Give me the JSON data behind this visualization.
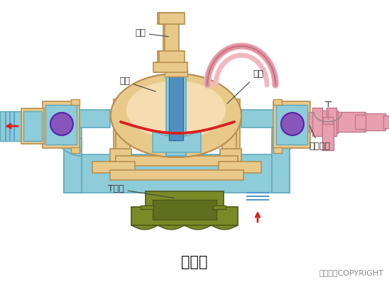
{
  "title": "隔膜泵",
  "copyright": "东方仿真COPYRIGHT",
  "labels": {
    "qi_gang": "气缸",
    "beng_ti": "泵体",
    "ge_mo": "隔膜",
    "dan_xiang": "单向球阀",
    "t_guan": "T型管"
  },
  "colors": {
    "background": "#ffffff",
    "body_fill": "#e8c98a",
    "body_edge": "#b89050",
    "water_fill": "#8dccd8",
    "water_edge": "#60a8c0",
    "diaphragm_red": "#dd2020",
    "ball_purple": "#8855bb",
    "pipe_pink": "#e8a0b0",
    "pipe_pink_edge": "#c07888",
    "green_base": "#7a8a28",
    "green_edge": "#505818",
    "arrow_red": "#dd2020",
    "pump_body_light": "#f5ddb0",
    "shaft_blue": "#5090c0",
    "shaft_blue_edge": "#3070a0",
    "tube_pink_light": "#f0b8c0",
    "tube_pink_dark": "#e090a0",
    "blue_line": "#5599cc"
  },
  "title_fontsize": 15,
  "label_fontsize": 9,
  "copyright_fontsize": 8
}
